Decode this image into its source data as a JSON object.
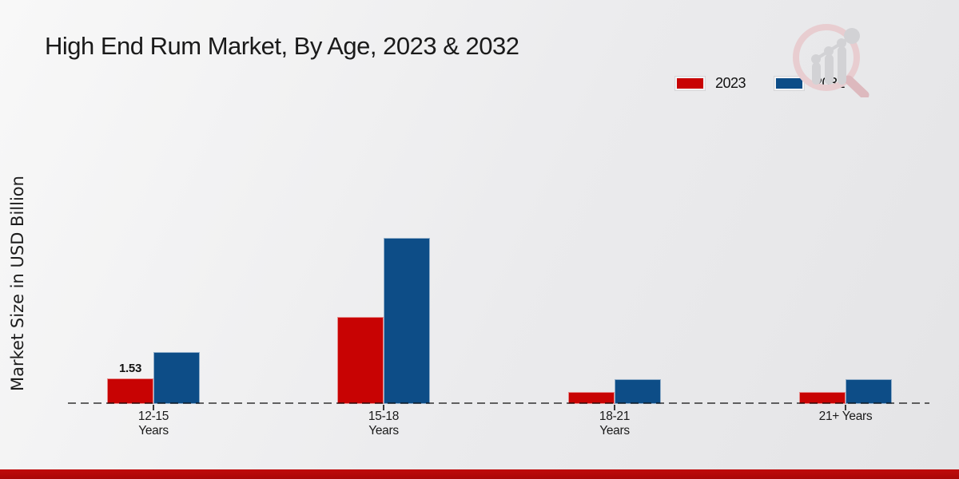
{
  "page": {
    "title": "High End Rum Market, By Age, 2023 & 2032"
  },
  "colors": {
    "series_2023": "#c80303",
    "series_2032": "#0d4d87",
    "footer_strip": "#b30909",
    "baseline_dash": "#3c3c3c",
    "background_start": "#f8f8f8",
    "background_end": "#e4e4e6",
    "logo_ring": "#e8cdd0",
    "logo_gray": "#d2d2d5"
  },
  "chart_data": {
    "type": "bar",
    "title": "High End Rum Market, By Age, 2023 & 2032",
    "xlabel": "",
    "ylabel": "Market Size in USD Billion",
    "legend_position": "top-right",
    "grid": false,
    "baseline_style": "dashed",
    "ylim": [
      0,
      10.5
    ],
    "categories": [
      {
        "line1": "12-15",
        "line2": "Years"
      },
      {
        "line1": "15-18",
        "line2": "Years"
      },
      {
        "line1": "18-21",
        "line2": "Years"
      },
      {
        "line1": "21+ Years",
        "line2": ""
      }
    ],
    "series": [
      {
        "name": "2023",
        "color": "#c80303",
        "values": [
          1.53,
          5.21,
          0.72,
          0.72
        ],
        "value_labels": [
          "1.53",
          "",
          "",
          ""
        ]
      },
      {
        "name": "2032",
        "color": "#0d4d87",
        "values": [
          3.11,
          9.95,
          1.48,
          1.48
        ],
        "value_labels": [
          "",
          "",
          "",
          ""
        ]
      }
    ]
  }
}
